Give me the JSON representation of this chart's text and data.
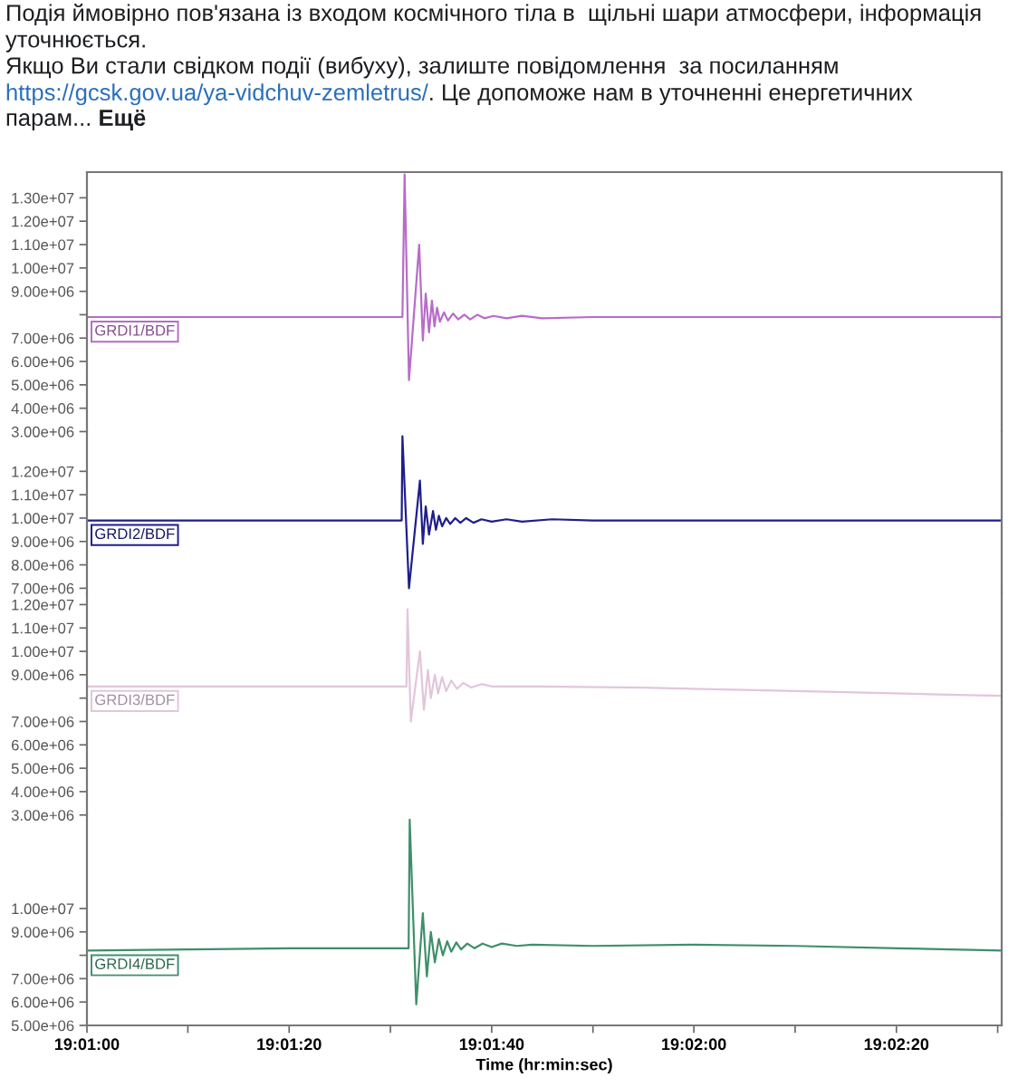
{
  "chart_data": [
    {
      "type": "line",
      "annotations": [
        "Подія ймовірно пов'язана із входом космічного тіла в  щільні шари атмосфери, інформація уточнюється.",
        "Якщо Ви стали свідком події (вибуху), залиште повідомлення  за посиланням",
        "https://gcsk.gov.ua/ya-vidchuv-zemletrus/",
        ". Це допоможе нам в уточненні енергетичних",
        "парам...",
        "Ещё"
      ],
      "tick_labels": "y",
      "xlim": [
        19.01667,
        19.04178
      ],
      "ylim": [
        3000000,
        14100000
      ],
      "yticks": [
        {
          "value": 3000000,
          "label": "3.00e+06"
        },
        {
          "value": 4000000,
          "label": "4.00e+06"
        },
        {
          "value": 5000000,
          "label": "5.00e+06"
        },
        {
          "value": 6000000,
          "label": "6.00e+06"
        },
        {
          "value": 7000000,
          "label": "7.00e+06"
        },
        {
          "value": 8000000,
          "label": null
        },
        {
          "value": 9000000,
          "label": "9.00e+06"
        },
        {
          "value": 10000000,
          "label": "1.00e+07"
        },
        {
          "value": 11000000,
          "label": "1.10e+07"
        },
        {
          "value": 12000000,
          "label": "1.20e+07"
        },
        {
          "value": 13000000,
          "label": "1.30e+07"
        }
      ],
      "x": [
        19.01667,
        19.02083,
        19.02533,
        19.02539,
        19.02551,
        19.02579,
        19.02589,
        19.02597,
        19.02606,
        19.02614,
        19.02621,
        19.02628,
        19.02636,
        19.02647,
        19.02658,
        19.02672,
        19.02686,
        19.02703,
        19.02719,
        19.02739,
        19.02758,
        19.02783,
        19.02819,
        19.02861,
        19.02917,
        19.03056,
        19.03333,
        19.03611,
        19.03889,
        19.04178
      ],
      "series": [
        {
          "name": "GRDI1/BDF",
          "color": "#b86cc8",
          "values": [
            7900000,
            7900000,
            7900000,
            14000000,
            5200000,
            11000000,
            6900000,
            8900000,
            7250000,
            8600000,
            7500000,
            8300000,
            7700000,
            8100000,
            7750000,
            8050000,
            7800000,
            8000000,
            7800000,
            8000000,
            7850000,
            7950000,
            7850000,
            7950000,
            7850000,
            7900000,
            7900000,
            7900000,
            7900000,
            7900000
          ]
        }
      ]
    },
    {
      "type": "line",
      "tick_labels": "y",
      "xlim": [
        19.01667,
        19.04178
      ],
      "ylim": [
        6800000,
        13700000
      ],
      "yticks": [
        {
          "value": 7000000,
          "label": "7.00e+06"
        },
        {
          "value": 8000000,
          "label": "8.00e+06"
        },
        {
          "value": 9000000,
          "label": "9.00e+06"
        },
        {
          "value": 10000000,
          "label": "1.00e+07"
        },
        {
          "value": 11000000,
          "label": "1.10e+07"
        },
        {
          "value": 12000000,
          "label": "1.20e+07"
        }
      ],
      "x": [
        19.01667,
        19.02083,
        19.02531,
        19.02533,
        19.02551,
        19.02581,
        19.02589,
        19.02597,
        19.02606,
        19.02617,
        19.02625,
        19.02633,
        19.02642,
        19.02653,
        19.02664,
        19.02678,
        19.02692,
        19.02708,
        19.02728,
        19.0275,
        19.02778,
        19.02819,
        19.02861,
        19.02944,
        19.03056,
        19.03333,
        19.03611,
        19.03889,
        19.04178
      ],
      "series": [
        {
          "name": "GRDI2/BDF",
          "color": "#1e1e8c",
          "values": [
            9900000,
            9900000,
            9900000,
            13500000,
            7000000,
            11600000,
            8900000,
            10500000,
            9300000,
            10300000,
            9500000,
            10100000,
            9650000,
            10000000,
            9750000,
            10000000,
            9800000,
            10000000,
            9800000,
            9950000,
            9850000,
            9950000,
            9850000,
            9950000,
            9900000,
            9900000,
            9900000,
            9900000,
            9900000
          ]
        }
      ]
    },
    {
      "type": "line",
      "tick_labels": "y",
      "xlim": [
        19.01667,
        19.04178
      ],
      "ylim": [
        3000000,
        12500000
      ],
      "yticks": [
        {
          "value": 3000000,
          "label": "3.00e+06"
        },
        {
          "value": 4000000,
          "label": "4.00e+06"
        },
        {
          "value": 5000000,
          "label": "5.00e+06"
        },
        {
          "value": 6000000,
          "label": "6.00e+06"
        },
        {
          "value": 7000000,
          "label": "7.00e+06"
        },
        {
          "value": 8000000,
          "label": null
        },
        {
          "value": 9000000,
          "label": "9.00e+06"
        },
        {
          "value": 10000000,
          "label": "1.00e+07"
        },
        {
          "value": 11000000,
          "label": "1.10e+07"
        },
        {
          "value": 12000000,
          "label": "1.20e+07"
        }
      ],
      "x": [
        19.01667,
        19.02083,
        19.02544,
        19.02547,
        19.02556,
        19.02581,
        19.02592,
        19.02603,
        19.02611,
        19.02622,
        19.02631,
        19.02642,
        19.02653,
        19.02667,
        19.02683,
        19.027,
        19.02722,
        19.0275,
        19.02778,
        19.02917,
        19.03194,
        19.03472,
        19.0375,
        19.04028,
        19.04178
      ],
      "series": [
        {
          "name": "GRDI3/BDF",
          "color": "#e2c6dc",
          "values": [
            8500000,
            8500000,
            8500000,
            11800000,
            7000000,
            10000000,
            7500000,
            9200000,
            8000000,
            9000000,
            8200000,
            8900000,
            8300000,
            8750000,
            8400000,
            8650000,
            8450000,
            8600000,
            8500000,
            8500000,
            8450000,
            8350000,
            8250000,
            8150000,
            8100000
          ]
        }
      ]
    },
    {
      "type": "line",
      "xlabel": "Time (hr:min:sec)",
      "xlim": [
        19.01667,
        19.04178
      ],
      "ylim": [
        5000000,
        14000000
      ],
      "xticks": [
        {
          "value": 19.01667,
          "label": "19:01:00"
        },
        {
          "value": 19.01944,
          "label": null
        },
        {
          "value": 19.02222,
          "label": "19:01:20"
        },
        {
          "value": 19.025,
          "label": null
        },
        {
          "value": 19.02778,
          "label": "19:01:40"
        },
        {
          "value": 19.03056,
          "label": null
        },
        {
          "value": 19.03333,
          "label": "19:02:00"
        },
        {
          "value": 19.03611,
          "label": null
        },
        {
          "value": 19.03889,
          "label": "19:02:20"
        },
        {
          "value": 19.04167,
          "label": null
        }
      ],
      "yticks": [
        {
          "value": 5000000,
          "label": "5.00e+06"
        },
        {
          "value": 6000000,
          "label": "6.00e+06"
        },
        {
          "value": 7000000,
          "label": "7.00e+06"
        },
        {
          "value": 8000000,
          "label": null
        },
        {
          "value": 9000000,
          "label": "9.00e+06"
        },
        {
          "value": 10000000,
          "label": "1.00e+07"
        }
      ],
      "x": [
        19.01667,
        19.01944,
        19.02222,
        19.0255,
        19.02553,
        19.02571,
        19.02589,
        19.026,
        19.02611,
        19.02622,
        19.02633,
        19.02644,
        19.02656,
        19.02667,
        19.02681,
        19.02694,
        19.02711,
        19.02731,
        19.02753,
        19.02778,
        19.02806,
        19.02847,
        19.02889,
        19.03056,
        19.03333,
        19.03611,
        19.03889,
        19.04178
      ],
      "series": [
        {
          "name": "GRDI4/BDF",
          "color": "#3f8f6c",
          "values": [
            8200000,
            8250000,
            8300000,
            8300000,
            13800000,
            5900000,
            9800000,
            7100000,
            9000000,
            7700000,
            8700000,
            8000000,
            8600000,
            8150000,
            8550000,
            8250000,
            8500000,
            8300000,
            8500000,
            8350000,
            8500000,
            8400000,
            8450000,
            8400000,
            8450000,
            8400000,
            8300000,
            8200000
          ]
        }
      ]
    }
  ]
}
